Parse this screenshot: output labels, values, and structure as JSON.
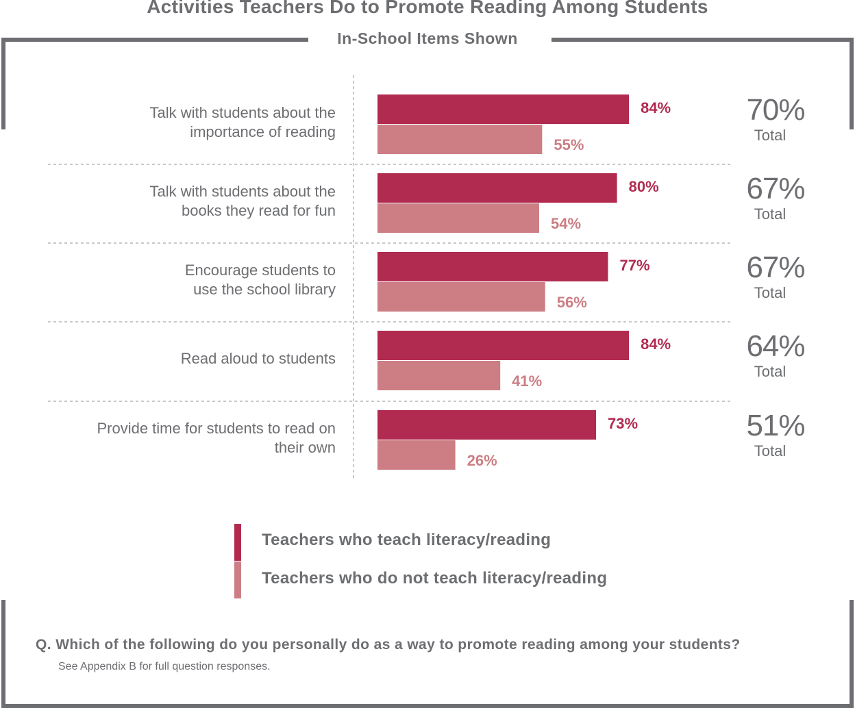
{
  "chart_data": {
    "type": "bar",
    "orientation": "horizontal",
    "title": "Activities Teachers Do to Promote Reading Among Students",
    "subtitle": "In-School Items Shown",
    "categories": [
      [
        "Talk with students about the",
        "importance of reading"
      ],
      [
        "Talk with students about the",
        "books they read for fun"
      ],
      [
        "Encourage students to",
        "use the school library"
      ],
      [
        "Read aloud to students"
      ],
      [
        "Provide time for students to read on",
        "their own"
      ]
    ],
    "series": [
      {
        "name": "Teachers who teach literacy/reading",
        "color": "#b12b51",
        "values": [
          84,
          80,
          77,
          84,
          73
        ],
        "labels": [
          "84%",
          "80%",
          "77%",
          "84%",
          "73%"
        ]
      },
      {
        "name": "Teachers who do not teach literacy/reading",
        "color": "#cc7e84",
        "values": [
          55,
          54,
          56,
          41,
          26
        ],
        "labels": [
          "55%",
          "54%",
          "56%",
          "41%",
          "26%"
        ]
      }
    ],
    "totals": [
      "70%",
      "67%",
      "67%",
      "64%",
      "51%"
    ],
    "total_word": "Total",
    "xlim": [
      0,
      100
    ],
    "legend_position": "bottom"
  },
  "footer": {
    "question": "Q. Which of the following do you personally do as a way to promote reading among your students?",
    "note": "See Appendix B for full question responses."
  }
}
